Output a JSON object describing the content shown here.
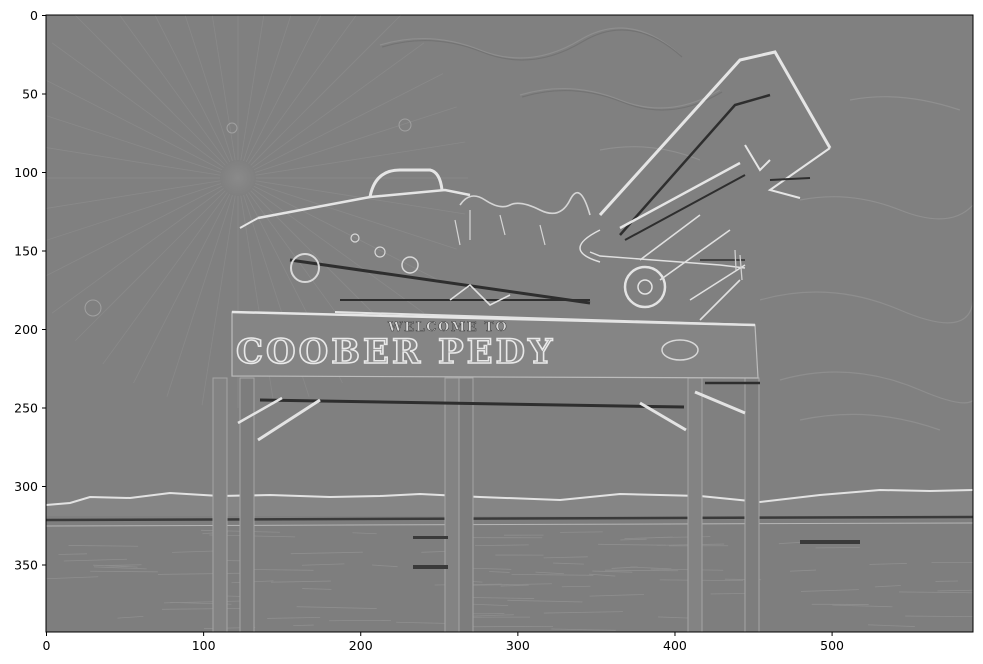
{
  "figure": {
    "image_description": "emboss-filtered grayscale photo of the Coober Pedy welcome sign with mining machinery",
    "sign": {
      "small_text": "WELCOME TO",
      "big_text": "COOBER PEDY"
    }
  },
  "axes": {
    "x": {
      "ticks": [
        0,
        100,
        200,
        300,
        400,
        500
      ],
      "labels": [
        "0",
        "100",
        "200",
        "300",
        "400",
        "500"
      ],
      "range": [
        0,
        590
      ]
    },
    "y": {
      "ticks": [
        0,
        50,
        100,
        150,
        200,
        250,
        300,
        350
      ],
      "labels": [
        "0",
        "50",
        "100",
        "150",
        "200",
        "250",
        "300",
        "350"
      ],
      "range": [
        0,
        393
      ],
      "inverted": true
    }
  },
  "colors": {
    "background": "#808080",
    "highlight": "#e6e6e6",
    "shadow": "#2e2e2e"
  }
}
